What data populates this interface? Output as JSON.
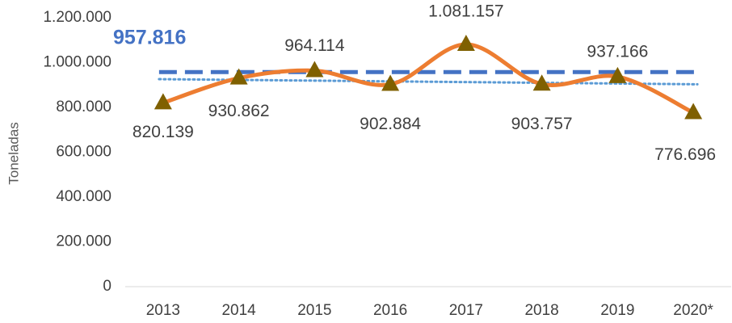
{
  "chart_data": {
    "type": "line",
    "y_label": "Toneladas",
    "categories": [
      "2013",
      "2014",
      "2015",
      "2016",
      "2017",
      "2018",
      "2019",
      "2020*"
    ],
    "series": [
      {
        "color": "#ED7D31",
        "marker_color": "#7F6000",
        "values": [
          820139,
          930862,
          964114,
          902884,
          1081157,
          903757,
          937166,
          776696
        ],
        "value_labels": [
          "820.139",
          "930.862",
          "964.114",
          "902.884",
          "1.081.157",
          "903.757",
          "937.166",
          "776.696"
        ]
      }
    ],
    "average": {
      "value": 957816,
      "label": "957.816",
      "color": "#4472C4"
    },
    "trendline": {
      "color": "#5B9BD5",
      "values": [
        926070,
        903124
      ]
    },
    "ylim": [
      0,
      1200000
    ],
    "yticks": [
      0,
      {
        "value": 200000,
        "label": "200.000"
      },
      {
        "value": 400000,
        "label": "400.000"
      },
      {
        "value": 600000,
        "label": "600.000"
      },
      {
        "value": 800000,
        "label": "800.000"
      },
      {
        "value": 1000000,
        "label": "1.000.000"
      },
      {
        "value": 1200000,
        "label": "1.200.000"
      }
    ],
    "grid": false
  }
}
